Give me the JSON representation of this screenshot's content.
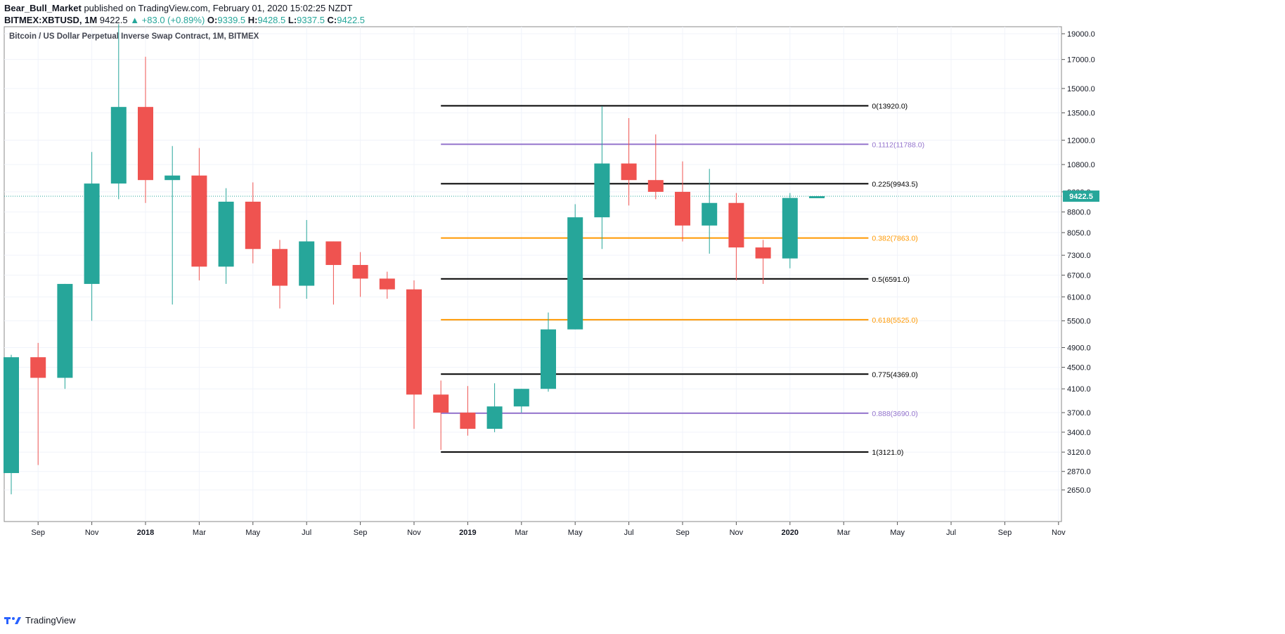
{
  "header": {
    "publisher": "Bear_Bull_Market",
    "published_text": "published on TradingView.com, February 01, 2020 15:02:25 NZDT",
    "symbol": "BITMEX:XBTUSD, 1M",
    "last": "9422.5",
    "change": "▲ +83.0 (+0.89%)",
    "o_label": "O:",
    "o_val": "9339.5",
    "h_label": "H:",
    "h_val": "9428.5",
    "l_label": "L:",
    "l_val": "9337.5",
    "c_label": "C:",
    "c_val": "9422.5"
  },
  "footer": {
    "brand": "TradingView"
  },
  "chart_data": {
    "type": "candlestick",
    "title": "Bitcoin / US Dollar Perpetual Inverse Swap Contract, 1M, BITMEX",
    "y_scale": "log",
    "ylim": [
      2500,
      20000
    ],
    "y_ticks": [
      19000,
      17000,
      15000,
      13500,
      12000,
      10800,
      9600,
      8800,
      8050,
      7300,
      6700,
      6100,
      5500,
      4900,
      4500,
      4100,
      3700,
      3400,
      3120,
      2870,
      2650
    ],
    "y_tick_labels": [
      "19000.0",
      "17000.0",
      "15000.0",
      "13500.0",
      "12000.0",
      "10800.0",
      "9600.0",
      "8800.0",
      "8050.0",
      "7300.0",
      "6700.0",
      "6100.0",
      "5500.0",
      "4900.0",
      "4500.0",
      "4100.0",
      "3700.0",
      "3400.0",
      "3120.0",
      "2870.0",
      "2650.0"
    ],
    "x_ticks": [
      {
        "i": 1,
        "label": "Sep",
        "bold": false
      },
      {
        "i": 3,
        "label": "Nov",
        "bold": false
      },
      {
        "i": 5,
        "label": "2018",
        "bold": true
      },
      {
        "i": 7,
        "label": "Mar",
        "bold": false
      },
      {
        "i": 9,
        "label": "May",
        "bold": false
      },
      {
        "i": 11,
        "label": "Jul",
        "bold": false
      },
      {
        "i": 13,
        "label": "Sep",
        "bold": false
      },
      {
        "i": 15,
        "label": "Nov",
        "bold": false
      },
      {
        "i": 17,
        "label": "2019",
        "bold": true
      },
      {
        "i": 19,
        "label": "Mar",
        "bold": false
      },
      {
        "i": 21,
        "label": "May",
        "bold": false
      },
      {
        "i": 23,
        "label": "Jul",
        "bold": false
      },
      {
        "i": 25,
        "label": "Sep",
        "bold": false
      },
      {
        "i": 27,
        "label": "Nov",
        "bold": false
      },
      {
        "i": 29,
        "label": "2020",
        "bold": true
      },
      {
        "i": 31,
        "label": "Mar",
        "bold": false
      },
      {
        "i": 33,
        "label": "May",
        "bold": false
      },
      {
        "i": 35,
        "label": "Jul",
        "bold": false
      },
      {
        "i": 37,
        "label": "Sep",
        "bold": false
      },
      {
        "i": 39,
        "label": "Nov",
        "bold": false
      }
    ],
    "candles": [
      {
        "x": "2017-08",
        "o": 2850,
        "h": 4750,
        "l": 2600,
        "c": 4700
      },
      {
        "x": "2017-09",
        "o": 4700,
        "h": 5000,
        "l": 2950,
        "c": 4300
      },
      {
        "x": "2017-10",
        "o": 4300,
        "h": 6450,
        "l": 4100,
        "c": 6450
      },
      {
        "x": "2017-11",
        "o": 6450,
        "h": 11400,
        "l": 5500,
        "c": 9950
      },
      {
        "x": "2017-12",
        "o": 9950,
        "h": 19800,
        "l": 9300,
        "c": 13850
      },
      {
        "x": "2018-01",
        "o": 13850,
        "h": 17200,
        "l": 9150,
        "c": 10100
      },
      {
        "x": "2018-02",
        "o": 10100,
        "h": 11700,
        "l": 5900,
        "c": 10300
      },
      {
        "x": "2018-03",
        "o": 10300,
        "h": 11600,
        "l": 6550,
        "c": 6950
      },
      {
        "x": "2018-04",
        "o": 6950,
        "h": 9750,
        "l": 6450,
        "c": 9200
      },
      {
        "x": "2018-05",
        "o": 9200,
        "h": 10000,
        "l": 7050,
        "c": 7500
      },
      {
        "x": "2018-06",
        "o": 7500,
        "h": 7800,
        "l": 5800,
        "c": 6400
      },
      {
        "x": "2018-07",
        "o": 6400,
        "h": 8500,
        "l": 6050,
        "c": 7750
      },
      {
        "x": "2018-08",
        "o": 7750,
        "h": 7750,
        "l": 5900,
        "c": 7000
      },
      {
        "x": "2018-09",
        "o": 7000,
        "h": 7400,
        "l": 6100,
        "c": 6600
      },
      {
        "x": "2018-10",
        "o": 6600,
        "h": 6800,
        "l": 6050,
        "c": 6300
      },
      {
        "x": "2018-11",
        "o": 6300,
        "h": 6550,
        "l": 3450,
        "c": 4000
      },
      {
        "x": "2018-12",
        "o": 4000,
        "h": 4250,
        "l": 3150,
        "c": 3700
      },
      {
        "x": "2019-01",
        "o": 3700,
        "h": 4150,
        "l": 3350,
        "c": 3450
      },
      {
        "x": "2019-02",
        "o": 3450,
        "h": 4200,
        "l": 3400,
        "c": 3800
      },
      {
        "x": "2019-03",
        "o": 3800,
        "h": 4100,
        "l": 3700,
        "c": 4100
      },
      {
        "x": "2019-04",
        "o": 4100,
        "h": 5700,
        "l": 4050,
        "c": 5300
      },
      {
        "x": "2019-05",
        "o": 5300,
        "h": 9100,
        "l": 5300,
        "c": 8600
      },
      {
        "x": "2019-06",
        "o": 8600,
        "h": 13900,
        "l": 7500,
        "c": 10850
      },
      {
        "x": "2019-07",
        "o": 10850,
        "h": 13200,
        "l": 9050,
        "c": 10100
      },
      {
        "x": "2019-08",
        "o": 10100,
        "h": 12300,
        "l": 9300,
        "c": 9600
      },
      {
        "x": "2019-09",
        "o": 9600,
        "h": 10950,
        "l": 7750,
        "c": 8300
      },
      {
        "x": "2019-10",
        "o": 8300,
        "h": 10600,
        "l": 7350,
        "c": 9150
      },
      {
        "x": "2019-11",
        "o": 9150,
        "h": 9550,
        "l": 6550,
        "c": 7550
      },
      {
        "x": "2019-12",
        "o": 7550,
        "h": 7800,
        "l": 6450,
        "c": 7200
      },
      {
        "x": "2020-01",
        "o": 7200,
        "h": 9550,
        "l": 6900,
        "c": 9350
      },
      {
        "x": "2020-02",
        "o": 9339.5,
        "h": 9428.5,
        "l": 9337.5,
        "c": 9422.5
      }
    ],
    "fib_levels": [
      {
        "label": "0(13920.0)",
        "price": 13920,
        "color": "#000000"
      },
      {
        "label": "0.1112(11788.0)",
        "price": 11788,
        "color": "#9575cd"
      },
      {
        "label": "0.225(9943.5)",
        "price": 9943.5,
        "color": "#000000"
      },
      {
        "label": "0.382(7863.0)",
        "price": 7863,
        "color": "#ff9800"
      },
      {
        "label": "0.5(6591.0)",
        "price": 6591,
        "color": "#000000"
      },
      {
        "label": "0.618(5525.0)",
        "price": 5525,
        "color": "#ff9800"
      },
      {
        "label": "0.775(4369.0)",
        "price": 4369,
        "color": "#000000"
      },
      {
        "label": "0.888(3690.0)",
        "price": 3690,
        "color": "#9575cd"
      },
      {
        "label": "1(3121.0)",
        "price": 3121,
        "color": "#000000"
      }
    ],
    "fib_start_i": 16,
    "fib_end_i": 32,
    "last_price": 9422.5,
    "last_price_label": "9422.5",
    "colors": {
      "up": "#26a69a",
      "down": "#ef5350",
      "grid": "#f0f3fa",
      "axis": "#555555",
      "text": "#131722",
      "price_line": "#26a69a"
    }
  }
}
